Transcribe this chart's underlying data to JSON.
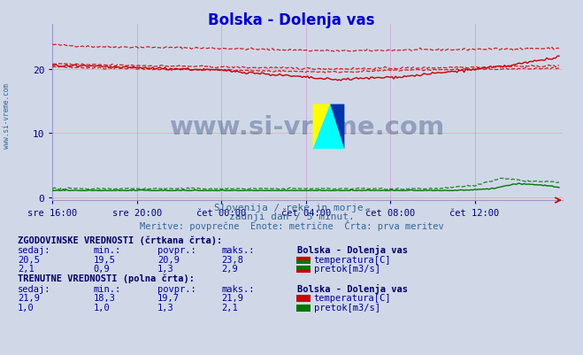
{
  "title": "Bolska - Dolenja vas",
  "title_color": "#0000cc",
  "background_color": "#d0d8e8",
  "plot_bg_color": "#d0d8e8",
  "x_label_color": "#000080",
  "y_label_color": "#000080",
  "grid_color_v": "#cc99cc",
  "grid_color_h": "#ff9999",
  "x_ticks": [
    "sre 16:00",
    "sre 20:00",
    "čet 00:00",
    "čet 04:00",
    "čet 08:00",
    "čet 12:00"
  ],
  "x_tick_positions": [
    0,
    48,
    96,
    144,
    192,
    240
  ],
  "y_ticks": [
    0,
    10,
    20
  ],
  "ylim": [
    -0.5,
    27
  ],
  "xlim": [
    0,
    290
  ],
  "red_color": "#cc0000",
  "green_color": "#007700",
  "watermark_text": "www.si-vreme.com",
  "watermark_color": "#1a3a6e",
  "subtitle1": "Slovenija / reke in morje.",
  "subtitle2": "zadnji dan / 5 minut.",
  "subtitle3": "Meritve: povprečne  Enote: metrične  Črta: prva meritev",
  "subtitle_color": "#336699",
  "table_header1": "ZGODOVINSKE VREDNOSTI (črtkana črta):",
  "table_header2": "TRENUTNE VREDNOSTI (polna črta):",
  "table_header_color": "#000066",
  "table_label_color": "#000099",
  "col_headers": [
    "sedaj:",
    "min.:",
    "povpr.:",
    "maks.:"
  ],
  "hist_temp": [
    "20,5",
    "19,5",
    "20,9",
    "23,8"
  ],
  "hist_flow": [
    "2,1",
    "0,9",
    "1,3",
    "2,9"
  ],
  "curr_temp": [
    "21,9",
    "18,3",
    "19,7",
    "21,9"
  ],
  "curr_flow": [
    "1,0",
    "1,0",
    "1,3",
    "2,1"
  ],
  "station_name": "Bolska - Dolenja vas",
  "label_temp": "temperatura[C]",
  "label_flow": "pretok[m3/s]",
  "left_label": "www.si-vreme.com",
  "left_label_color": "#336699"
}
